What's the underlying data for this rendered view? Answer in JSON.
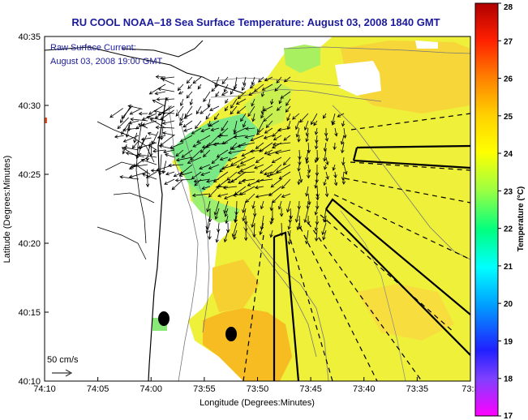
{
  "title": "RU COOL  NOAA–18  Sea Surface Temperature:  August 03, 2008 1840 GMT",
  "current_label": {
    "line1": "Raw Surface Current:",
    "line2": "August 03, 2008 19:00 GMT"
  },
  "scale_label": "50 cm/s",
  "axes": {
    "xlabel": "Longitude (Degrees:Minutes)",
    "ylabel": "Latitude (Degrees:Minutes)",
    "x_ticks": [
      "74:10",
      "74:05",
      "74:00",
      "73:55",
      "73:50",
      "73:45",
      "73:40",
      "73:35",
      "73:3"
    ],
    "y_ticks": [
      "40:35",
      "40:30",
      "40:25",
      "40:20",
      "40:15",
      "40:10"
    ]
  },
  "colorbar": {
    "label": "Temperature (°C)",
    "ticks": [
      "28",
      "27",
      "26",
      "25",
      "24",
      "23",
      "22",
      "21",
      "20",
      "19",
      "18",
      "17"
    ],
    "min": 17,
    "max": 28,
    "colors": [
      "#ff00ff",
      "#2020ff",
      "#00ffff",
      "#00ff60",
      "#ffff00",
      "#ffa000",
      "#ff2000",
      "#c00000"
    ]
  },
  "colors": {
    "title": "#1a1a9c",
    "sst_warm": "#f7d838",
    "sst_mid": "#eef03a",
    "sst_cool": "#6fe88c",
    "sst_hot": "#f5b01a"
  }
}
